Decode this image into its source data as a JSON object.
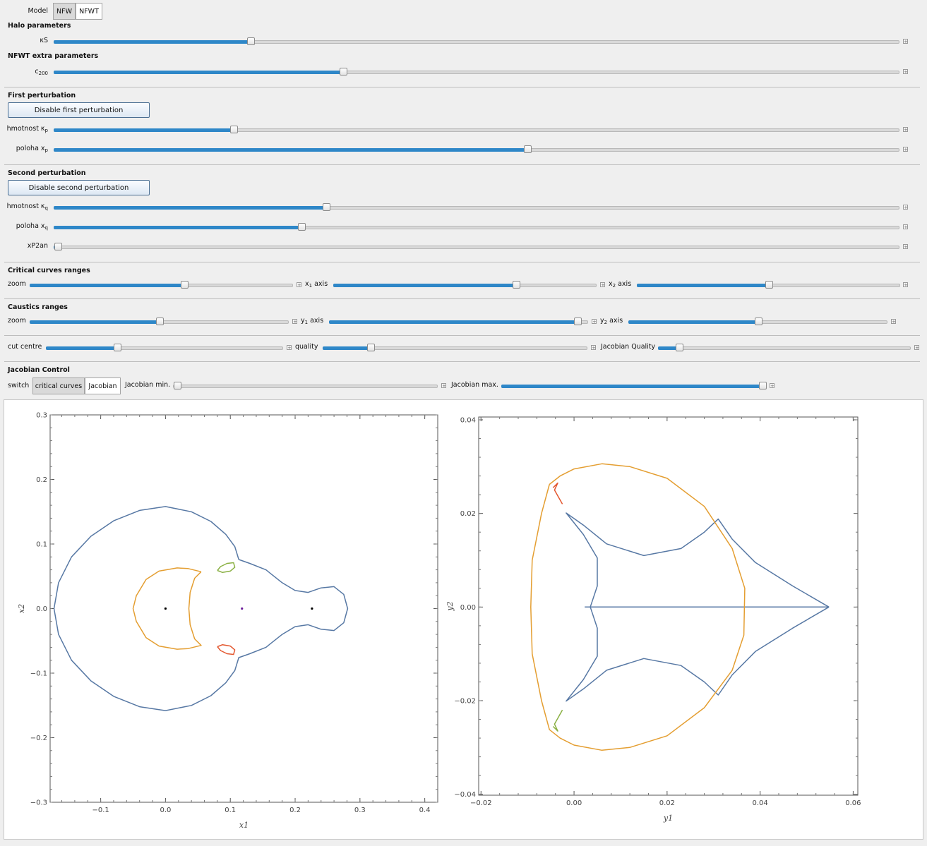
{
  "model": {
    "label": "Model",
    "options": [
      "NFW",
      "NFWT"
    ],
    "selected": "NFW"
  },
  "halo": {
    "title": "Halo parameters",
    "kappa_label": "κS",
    "kappa_value": 0.233
  },
  "nfwt": {
    "title": "NFWT extra parameters",
    "c_label": "c",
    "c_sub": "200",
    "c_value": 0.342
  },
  "first": {
    "title": "First perturbation",
    "button": "Disable first perturbation",
    "mass_label": "hmotnost κ",
    "mass_sub": "p",
    "mass_value": 0.213,
    "pos_label": "poloha x",
    "pos_sub": "p",
    "pos_value": 0.56
  },
  "second": {
    "title": "Second perturbation",
    "button": "Disable second perturbation",
    "mass_label": "hmotnost κ",
    "mass_sub": "q",
    "mass_value": 0.322,
    "pos_label": "poloha x",
    "pos_sub": "q",
    "pos_value": 0.293,
    "an_label": "xP2an",
    "an_value": 0.005
  },
  "crit": {
    "title": "Critical curves ranges",
    "zoom_label": "zoom",
    "zoom_value": 0.586,
    "x1_label": "x",
    "x1_sub": "1",
    "x1_suffix": " axis",
    "x1_value": 0.694,
    "x2_label": "x",
    "x2_sub": "2",
    "x2_suffix": " axis",
    "x2_value": 0.5
  },
  "caus": {
    "title": "Caustics ranges",
    "zoom_label": "zoom",
    "zoom_value": 0.5,
    "y1_label": "y",
    "y1_sub": "1",
    "y1_suffix": " axis",
    "y1_value": 0.96,
    "y2_label": "y",
    "y2_sub": "2",
    "y2_suffix": " axis",
    "y2_value": 0.5
  },
  "misc": {
    "cut_label": "cut centre",
    "cut_value": 0.3,
    "quality_label": "quality",
    "quality_value": 0.18,
    "jq_label": "Jacobian Quality",
    "jq_value": 0.085
  },
  "jacobian": {
    "title": "Jacobian Control",
    "switch_label": "switch",
    "options": [
      "critical curves",
      "Jacobian"
    ],
    "selected": "critical curves",
    "min_label": "Jacobian min.",
    "min_value": 0.0,
    "max_label": "Jacobian max.",
    "max_value": 1.0
  },
  "colors": {
    "blue": "#5778a4",
    "orange": "#e49e31",
    "green": "#8ab043",
    "red": "#e3572f",
    "accent": "#2e87c8"
  },
  "chart_data": [
    {
      "type": "line",
      "xlabel": "x1",
      "ylabel": "x2",
      "xlim": [
        -0.178,
        0.42
      ],
      "ylim": [
        -0.3,
        0.3
      ],
      "xticks": [
        "−0.1",
        "0.0",
        "0.1",
        "0.2",
        "0.3",
        "0.4"
      ],
      "xtick_values": [
        -0.1,
        0,
        0.1,
        0.2,
        0.3,
        0.4
      ],
      "yticks": [
        "0.3",
        "0.2",
        "0.1",
        "0.0",
        "−0.1",
        "−0.2",
        "−0.3"
      ],
      "ytick_values": [
        0.3,
        0.2,
        0.1,
        0,
        -0.1,
        -0.2,
        -0.3
      ],
      "series": [
        {
          "color": "blue",
          "points": [
            [
              0.113,
              0.076
            ],
            [
              0.107,
              0.096
            ],
            [
              0.093,
              0.115
            ],
            [
              0.07,
              0.135
            ],
            [
              0.04,
              0.15
            ],
            [
              0.0,
              0.158
            ],
            [
              -0.04,
              0.152
            ],
            [
              -0.08,
              0.136
            ],
            [
              -0.115,
              0.112
            ],
            [
              -0.145,
              0.08
            ],
            [
              -0.165,
              0.04
            ],
            [
              -0.172,
              0.0
            ],
            [
              -0.165,
              -0.04
            ],
            [
              -0.145,
              -0.08
            ],
            [
              -0.115,
              -0.112
            ],
            [
              -0.08,
              -0.136
            ],
            [
              -0.04,
              -0.152
            ],
            [
              0.0,
              -0.158
            ],
            [
              0.04,
              -0.15
            ],
            [
              0.07,
              -0.135
            ],
            [
              0.093,
              -0.115
            ],
            [
              0.107,
              -0.096
            ],
            [
              0.113,
              -0.076
            ],
            [
              0.13,
              -0.07
            ],
            [
              0.155,
              -0.06
            ],
            [
              0.18,
              -0.04
            ],
            [
              0.2,
              -0.028
            ],
            [
              0.22,
              -0.025
            ],
            [
              0.24,
              -0.032
            ],
            [
              0.26,
              -0.034
            ],
            [
              0.275,
              -0.022
            ],
            [
              0.281,
              0.0
            ],
            [
              0.275,
              0.022
            ],
            [
              0.26,
              0.034
            ],
            [
              0.24,
              0.032
            ],
            [
              0.22,
              0.025
            ],
            [
              0.2,
              0.028
            ],
            [
              0.18,
              0.04
            ],
            [
              0.155,
              0.06
            ],
            [
              0.13,
              0.07
            ],
            [
              0.113,
              0.076
            ]
          ]
        },
        {
          "color": "orange",
          "points": [
            [
              0.055,
              0.057
            ],
            [
              0.045,
              0.047
            ],
            [
              0.038,
              0.025
            ],
            [
              0.036,
              0.0
            ],
            [
              0.038,
              -0.025
            ],
            [
              0.045,
              -0.047
            ],
            [
              0.055,
              -0.057
            ],
            [
              0.035,
              -0.062
            ],
            [
              0.018,
              -0.063
            ],
            [
              -0.01,
              -0.058
            ],
            [
              -0.03,
              -0.045
            ],
            [
              -0.045,
              -0.02
            ],
            [
              -0.05,
              0.0
            ],
            [
              -0.045,
              0.02
            ],
            [
              -0.03,
              0.045
            ],
            [
              -0.01,
              0.058
            ],
            [
              0.018,
              0.063
            ],
            [
              0.035,
              0.062
            ],
            [
              0.055,
              0.057
            ]
          ]
        },
        {
          "color": "green",
          "points": [
            [
              0.08,
              0.059
            ],
            [
              0.085,
              0.065
            ],
            [
              0.095,
              0.07
            ],
            [
              0.105,
              0.071
            ],
            [
              0.107,
              0.064
            ],
            [
              0.1,
              0.058
            ],
            [
              0.088,
              0.056
            ],
            [
              0.08,
              0.059
            ]
          ]
        },
        {
          "color": "red",
          "points": [
            [
              0.08,
              -0.059
            ],
            [
              0.085,
              -0.065
            ],
            [
              0.095,
              -0.07
            ],
            [
              0.105,
              -0.071
            ],
            [
              0.107,
              -0.064
            ],
            [
              0.1,
              -0.058
            ],
            [
              0.088,
              -0.056
            ],
            [
              0.08,
              -0.059
            ]
          ]
        }
      ],
      "markers": [
        [
          0.0,
          0.0,
          "#000"
        ],
        [
          0.118,
          0.0,
          "#6a1b9a"
        ],
        [
          0.226,
          0.0,
          "#000"
        ]
      ]
    },
    {
      "type": "line",
      "xlabel": "y1",
      "ylabel": "y2",
      "xlim": [
        -0.0205,
        0.061
      ],
      "ylim": [
        -0.0402,
        0.0406
      ],
      "xticks": [
        "−0.02",
        "0.00",
        "0.02",
        "0.04",
        "0.06"
      ],
      "xtick_values": [
        -0.02,
        0,
        0.02,
        0.04,
        0.06
      ],
      "yticks": [
        "0.04",
        "0.02",
        "0.00",
        "−0.02",
        "−0.04"
      ],
      "ytick_values": [
        0.04,
        0.02,
        0,
        -0.02,
        -0.04
      ],
      "series": [
        {
          "color": "blue",
          "points": [
            [
              0.0548,
              0.0
            ],
            [
              0.047,
              0.0045
            ],
            [
              0.039,
              0.0095
            ],
            [
              0.034,
              0.0145
            ],
            [
              0.031,
              0.0188
            ],
            [
              0.028,
              0.016
            ],
            [
              0.023,
              0.0125
            ],
            [
              0.015,
              0.011
            ],
            [
              0.007,
              0.0135
            ],
            [
              0.002,
              0.0175
            ],
            [
              -0.0017,
              0.0201
            ],
            [
              0.002,
              0.0155
            ],
            [
              0.005,
              0.0105
            ],
            [
              0.005,
              0.0045
            ],
            [
              0.0035,
              0.0
            ],
            [
              0.005,
              -0.0045
            ],
            [
              0.005,
              -0.0105
            ],
            [
              0.002,
              -0.0155
            ],
            [
              -0.0017,
              -0.0201
            ],
            [
              0.002,
              -0.0175
            ],
            [
              0.007,
              -0.0135
            ],
            [
              0.015,
              -0.011
            ],
            [
              0.023,
              -0.0125
            ],
            [
              0.028,
              -0.016
            ],
            [
              0.031,
              -0.0188
            ],
            [
              0.034,
              -0.0145
            ],
            [
              0.039,
              -0.0095
            ],
            [
              0.047,
              -0.0045
            ],
            [
              0.0548,
              0.0
            ]
          ]
        },
        {
          "color": "blue",
          "points": [
            [
              0.0023,
              0.0
            ],
            [
              0.0035,
              0.0
            ],
            [
              0.0548,
              0.0
            ]
          ]
        },
        {
          "color": "orange",
          "points": [
            [
              -0.0053,
              0.0262
            ],
            [
              -0.003,
              0.028
            ],
            [
              0.0,
              0.0295
            ],
            [
              0.006,
              0.0306
            ],
            [
              0.012,
              0.03
            ],
            [
              0.02,
              0.0275
            ],
            [
              0.028,
              0.0215
            ],
            [
              0.034,
              0.0125
            ],
            [
              0.0367,
              0.004
            ],
            [
              0.0365,
              -0.006
            ],
            [
              0.034,
              -0.0135
            ],
            [
              0.028,
              -0.0215
            ],
            [
              0.02,
              -0.0275
            ],
            [
              0.012,
              -0.03
            ],
            [
              0.006,
              -0.0306
            ],
            [
              0.0,
              -0.0295
            ],
            [
              -0.003,
              -0.028
            ],
            [
              -0.0053,
              -0.0262
            ],
            [
              -0.007,
              -0.02
            ],
            [
              -0.009,
              -0.01
            ],
            [
              -0.0093,
              0.0
            ],
            [
              -0.009,
              0.01
            ],
            [
              -0.007,
              0.02
            ],
            [
              -0.0053,
              0.0262
            ]
          ]
        },
        {
          "color": "red",
          "points": [
            [
              -0.0045,
              0.0255
            ],
            [
              -0.0035,
              0.0265
            ],
            [
              -0.0042,
              0.025
            ],
            [
              -0.0025,
              0.022
            ]
          ]
        },
        {
          "color": "green",
          "points": [
            [
              -0.0045,
              -0.0255
            ],
            [
              -0.0035,
              -0.0265
            ],
            [
              -0.0042,
              -0.025
            ],
            [
              -0.0025,
              -0.022
            ]
          ]
        }
      ],
      "markers": []
    }
  ]
}
